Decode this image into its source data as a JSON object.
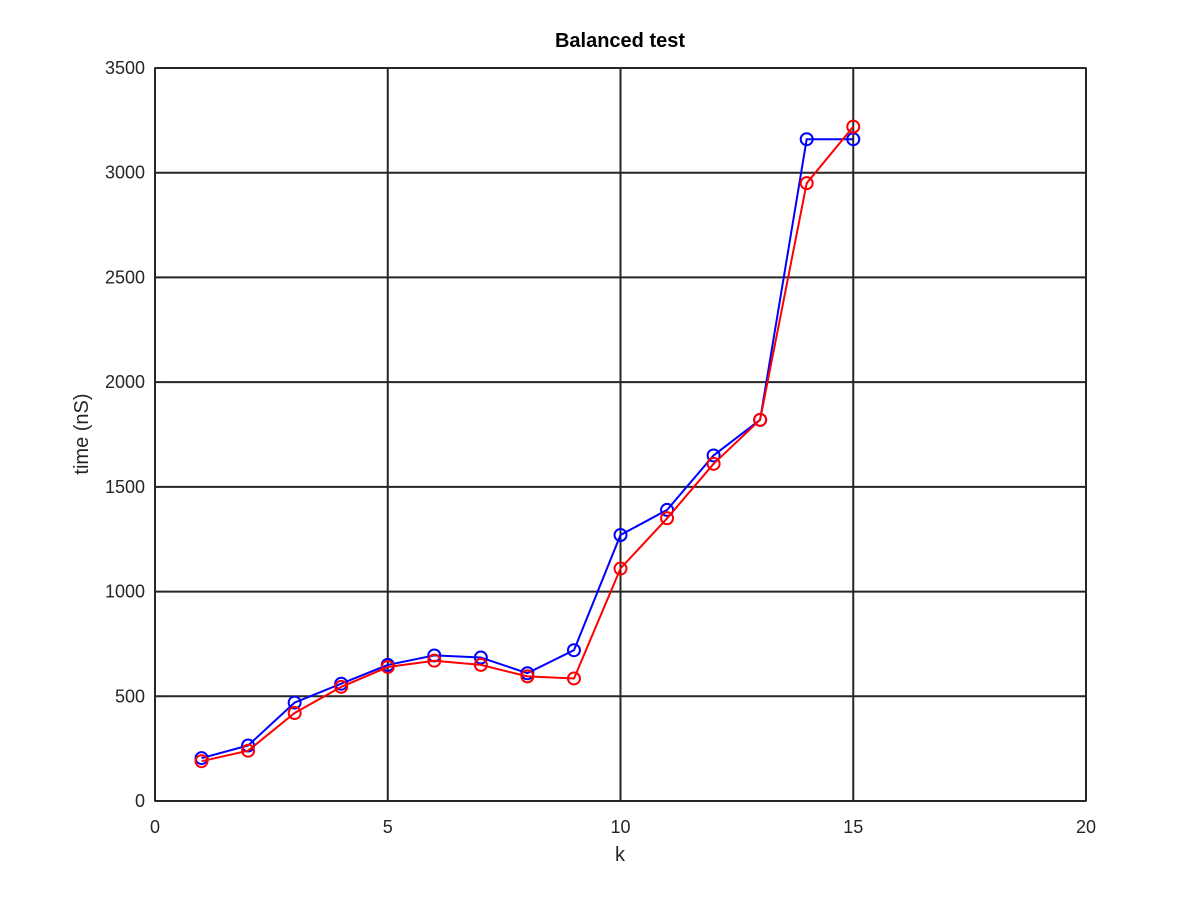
{
  "chart_data": {
    "type": "line",
    "title": "Balanced test",
    "xlabel": "k",
    "ylabel": "time (nS)",
    "xlim": [
      0,
      20
    ],
    "ylim": [
      0,
      3500
    ],
    "xticks": [
      0,
      5,
      10,
      15,
      20
    ],
    "yticks": [
      0,
      500,
      1000,
      1500,
      2000,
      2500,
      3000,
      3500
    ],
    "grid": true,
    "marker": "circle",
    "series": [
      {
        "color": "#0000ff",
        "x": [
          1,
          2,
          3,
          4,
          5,
          6,
          7,
          8,
          9,
          10,
          11,
          12,
          13,
          14,
          15
        ],
        "values": [
          205,
          265,
          470,
          560,
          650,
          695,
          685,
          610,
          720,
          1270,
          1390,
          1650,
          1820,
          3160,
          3160
        ]
      },
      {
        "color": "#ff0000",
        "x": [
          1,
          2,
          3,
          4,
          5,
          6,
          7,
          8,
          9,
          10,
          11,
          12,
          13,
          14,
          15
        ],
        "values": [
          190,
          240,
          420,
          545,
          640,
          670,
          650,
          595,
          585,
          1110,
          1350,
          1610,
          1820,
          2950,
          3220
        ]
      }
    ]
  }
}
